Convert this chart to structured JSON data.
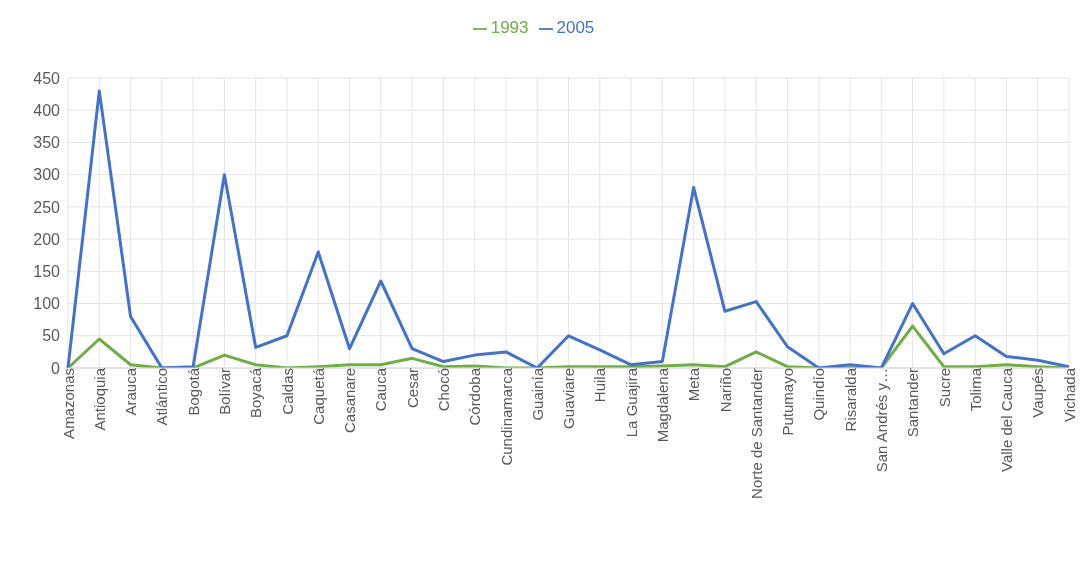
{
  "chart_data": {
    "type": "line",
    "categories": [
      "Amazonas",
      "Antioquia",
      "Arauca",
      "Atlántico",
      "Bogotá",
      "Bolívar",
      "Boyacá",
      "Caldas",
      "Caquetá",
      "Casanare",
      "Cauca",
      "Cesar",
      "Chocó",
      "Córdoba",
      "Cundinamarca",
      "Guainía",
      "Guaviare",
      "Huila",
      "La Guajira",
      "Magdalena",
      "Meta",
      "Nariño",
      "Norte de Santander",
      "Putumayo",
      "Quindío",
      "Risaralda",
      "San Andrés y…",
      "Santander",
      "Sucre",
      "Tolima",
      "Valle del Cauca",
      "Vaupés",
      "Vichada"
    ],
    "series": [
      {
        "name": "1993",
        "color": "#70ad47",
        "values": [
          0,
          45,
          5,
          0,
          0,
          20,
          5,
          0,
          2,
          5,
          5,
          15,
          2,
          3,
          0,
          0,
          2,
          2,
          2,
          3,
          5,
          2,
          25,
          2,
          0,
          0,
          0,
          65,
          2,
          2,
          5,
          2,
          0
        ]
      },
      {
        "name": "2005",
        "color": "#4472c4",
        "values": [
          0,
          430,
          80,
          0,
          2,
          300,
          32,
          50,
          180,
          30,
          135,
          30,
          10,
          20,
          25,
          0,
          50,
          28,
          5,
          10,
          280,
          88,
          103,
          33,
          0,
          5,
          0,
          100,
          22,
          50,
          18,
          12,
          2
        ]
      }
    ],
    "ylim": [
      0,
      450
    ],
    "yticks": [
      0,
      50,
      100,
      150,
      200,
      250,
      300,
      350,
      400,
      450
    ],
    "grid": true,
    "legend": "top",
    "marker": "none",
    "line_style": "solid"
  }
}
